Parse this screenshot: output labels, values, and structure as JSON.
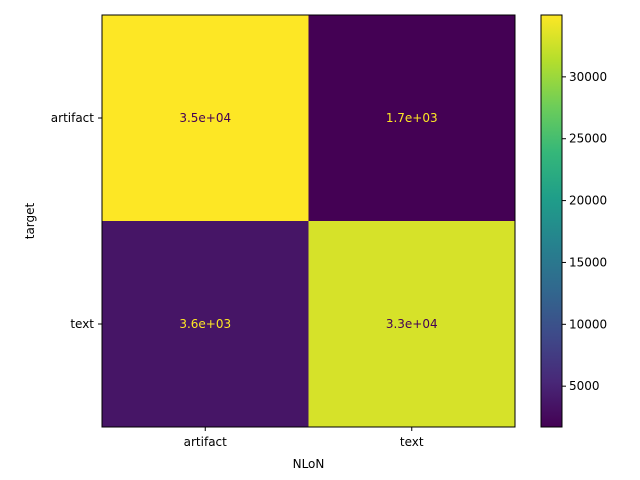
{
  "chart_data": {
    "type": "heatmap",
    "title": "",
    "xlabel": "NLoN",
    "ylabel": "target",
    "x_categories": [
      "artifact",
      "text"
    ],
    "y_categories": [
      "artifact",
      "text"
    ],
    "values": [
      [
        35000,
        1700
      ],
      [
        3600,
        33000
      ]
    ],
    "cell_labels": [
      [
        "3.5e+04",
        "1.7e+03"
      ],
      [
        "3.6e+03",
        "3.3e+04"
      ]
    ],
    "colorbar": {
      "min": 1700,
      "max": 35000,
      "ticks": [
        5000,
        10000,
        15000,
        20000,
        25000,
        30000
      ],
      "colormap": "viridis"
    },
    "text_color_dark_cells": "#fde725",
    "text_color_light_cells": "#440154"
  }
}
